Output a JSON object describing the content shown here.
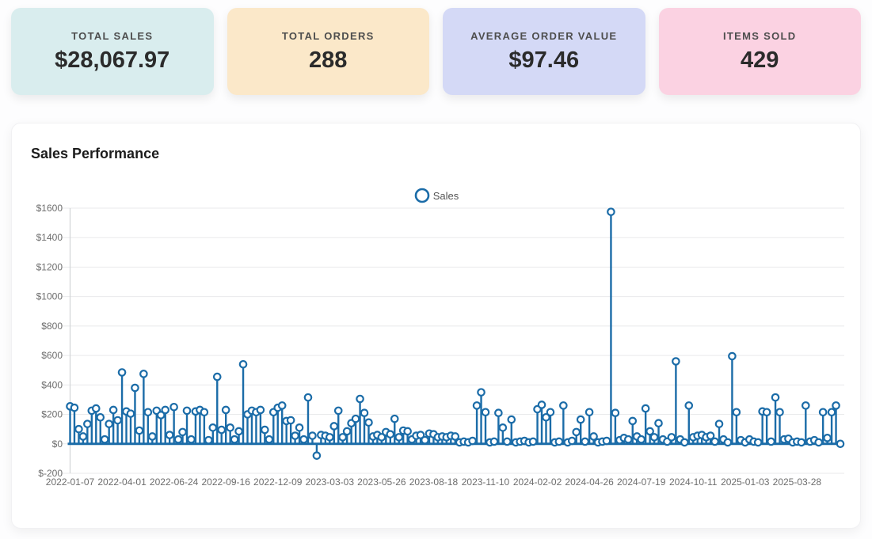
{
  "stats": [
    {
      "label": "TOTAL SALES",
      "value": "$28,067.97",
      "bg": "#d9edee"
    },
    {
      "label": "TOTAL ORDERS",
      "value": "288",
      "bg": "#fbe8c9"
    },
    {
      "label": "AVERAGE ORDER VALUE",
      "value": "$97.46",
      "bg": "#d4d9f6"
    },
    {
      "label": "ITEMS SOLD",
      "value": "429",
      "bg": "#fbd2e2"
    }
  ],
  "chart": {
    "title": "Sales Performance",
    "legend_label": "Sales"
  },
  "chart_data": {
    "type": "scatter",
    "style": "lollipop-stem",
    "title": "Sales Performance",
    "color": "#1b6ca8",
    "grid": true,
    "legend_position": "top-center",
    "marker": "open-circle",
    "ylim": [
      -200,
      1600
    ],
    "y_tick_step": 200,
    "y_tick_labels": [
      "$1600",
      "$1400",
      "$1200",
      "$1000",
      "$800",
      "$600",
      "$400",
      "$200",
      "$0",
      "$-200"
    ],
    "x_start": "2022-01-07",
    "x_step_days": 7,
    "x_ticks_every": 12,
    "x_tick_labels": [
      "2022-01-07",
      "2022-04-01",
      "2022-06-24",
      "2022-09-16",
      "2022-12-09",
      "2023-03-03",
      "2023-05-26",
      "2023-08-18",
      "2023-11-10",
      "2024-02-02",
      "2024-04-26",
      "2024-07-19",
      "2024-10-11",
      "2025-01-03",
      "2025-03-28"
    ],
    "series": [
      {
        "name": "Sales",
        "values": [
          255,
          245,
          100,
          50,
          135,
          225,
          240,
          180,
          30,
          135,
          230,
          160,
          485,
          220,
          205,
          380,
          90,
          475,
          215,
          50,
          225,
          195,
          230,
          60,
          250,
          30,
          80,
          225,
          30,
          220,
          230,
          215,
          25,
          110,
          455,
          95,
          230,
          110,
          30,
          85,
          540,
          200,
          225,
          215,
          230,
          95,
          30,
          215,
          245,
          260,
          155,
          160,
          55,
          110,
          30,
          315,
          55,
          -80,
          60,
          55,
          45,
          120,
          225,
          45,
          85,
          140,
          170,
          305,
          210,
          145,
          50,
          60,
          45,
          80,
          65,
          170,
          45,
          90,
          85,
          30,
          55,
          60,
          25,
          70,
          65,
          45,
          50,
          45,
          55,
          50,
          10,
          15,
          10,
          20,
          260,
          350,
          215,
          10,
          15,
          210,
          110,
          15,
          165,
          10,
          15,
          20,
          10,
          15,
          235,
          265,
          180,
          215,
          10,
          15,
          260,
          10,
          20,
          80,
          165,
          15,
          215,
          50,
          10,
          15,
          20,
          1575,
          210,
          25,
          40,
          30,
          155,
          50,
          30,
          240,
          85,
          45,
          140,
          30,
          15,
          45,
          560,
          30,
          10,
          260,
          45,
          55,
          60,
          45,
          55,
          15,
          135,
          30,
          10,
          595,
          215,
          25,
          10,
          30,
          15,
          10,
          220,
          215,
          15,
          315,
          215,
          30,
          35,
          10,
          15,
          10,
          260,
          15,
          25,
          10,
          215,
          40,
          215,
          260,
          0
        ]
      }
    ]
  }
}
